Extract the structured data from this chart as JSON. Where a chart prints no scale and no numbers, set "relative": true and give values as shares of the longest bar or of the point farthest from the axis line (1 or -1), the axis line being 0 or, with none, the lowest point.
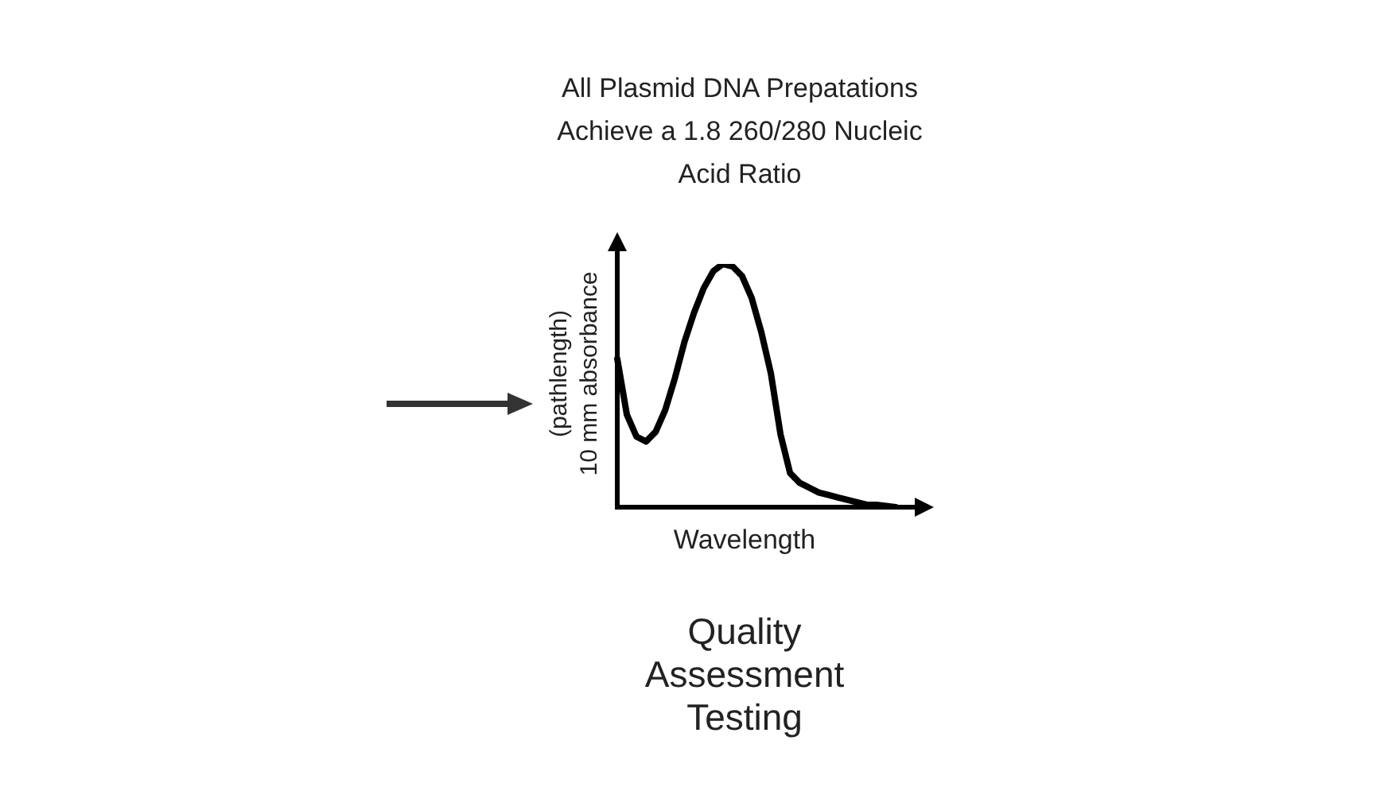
{
  "chart_data": {
    "type": "line",
    "relative": true,
    "title": "All Plasmid DNA Prepatations\nAchieve a 1.8 260/280 Nucleic\nAcid Ratio",
    "xlabel": "Wavelength",
    "ylabel": "(pathlength)\n10 mm absorbance",
    "annotations": [
      "Quality\nAssessment\nTesting"
    ],
    "categories": [
      null,
      null,
      null,
      null,
      null,
      null,
      null,
      null,
      null,
      null,
      null,
      null,
      null,
      null,
      null,
      null,
      null,
      null,
      null,
      null,
      null,
      null,
      null,
      null,
      null,
      null,
      null,
      null,
      null,
      null
    ],
    "series": [
      {
        "color": "#000000",
        "values": [
          0.61,
          0.38,
          0.29,
          0.27,
          0.31,
          0.4,
          0.53,
          0.68,
          0.8,
          0.9,
          0.97,
          1,
          0.99,
          0.95,
          0.86,
          0.72,
          0.55,
          0.3,
          0.14,
          0.1,
          0.08,
          0.06,
          0.05,
          0.04,
          0.03,
          0.02,
          0.01,
          0.01,
          0.005,
          0
        ]
      }
    ]
  }
}
